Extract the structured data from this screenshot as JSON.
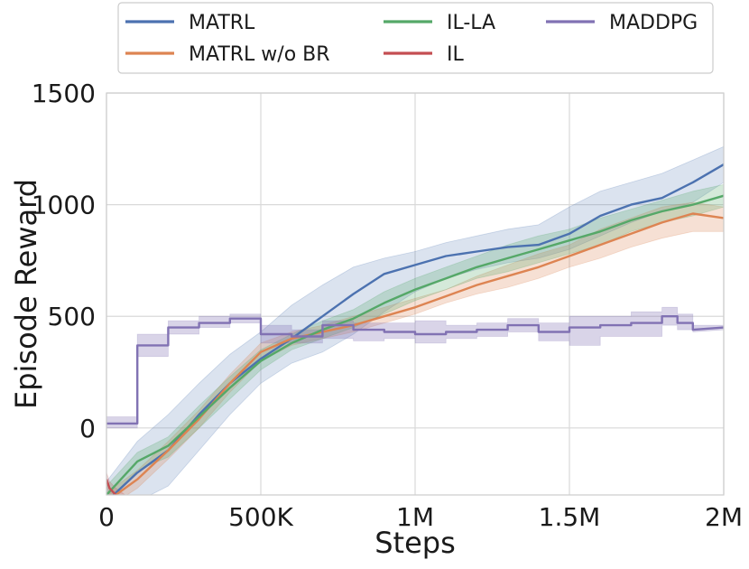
{
  "chart_data": {
    "type": "line",
    "title": "",
    "xlabel": "Steps",
    "ylabel": "Episode Reward",
    "xlim": [
      0,
      2000000
    ],
    "ylim": [
      -300,
      1500
    ],
    "x_ticks": [
      {
        "value": 0,
        "label": "0"
      },
      {
        "value": 500000,
        "label": "500K"
      },
      {
        "value": 1000000,
        "label": "1M"
      },
      {
        "value": 1500000,
        "label": "1.5M"
      },
      {
        "value": 2000000,
        "label": "2M"
      }
    ],
    "y_ticks": [
      {
        "value": 0,
        "label": "0"
      },
      {
        "value": 500,
        "label": "500"
      },
      {
        "value": 1000,
        "label": "1000"
      },
      {
        "value": 1500,
        "label": "1500"
      }
    ],
    "grid": true,
    "legend_position": "top",
    "series": [
      {
        "name": "MATRL",
        "color": "#4c72b0",
        "band_opacity": 0.2,
        "x": [
          0,
          100000,
          200000,
          300000,
          400000,
          500000,
          600000,
          700000,
          800000,
          900000,
          1000000,
          1100000,
          1200000,
          1300000,
          1400000,
          1500000,
          1600000,
          1700000,
          1800000,
          1900000,
          2000000
        ],
        "y": [
          -330,
          -200,
          -100,
          60,
          200,
          310,
          400,
          500,
          600,
          690,
          730,
          770,
          790,
          810,
          820,
          870,
          950,
          1000,
          1030,
          1100,
          1180
        ],
        "lower": [
          -420,
          -330,
          -260,
          -100,
          60,
          200,
          290,
          340,
          420,
          520,
          610,
          670,
          710,
          740,
          760,
          800,
          860,
          920,
          970,
          1010,
          1100
        ],
        "upper": [
          -240,
          -60,
          60,
          200,
          330,
          430,
          550,
          640,
          720,
          760,
          790,
          830,
          860,
          890,
          910,
          990,
          1060,
          1100,
          1140,
          1200,
          1260
        ]
      },
      {
        "name": "MATRL w/o BR",
        "color": "#dd8452",
        "band_opacity": 0.25,
        "x": [
          0,
          100000,
          200000,
          300000,
          400000,
          500000,
          600000,
          700000,
          800000,
          900000,
          1000000,
          1100000,
          1200000,
          1300000,
          1400000,
          1500000,
          1600000,
          1700000,
          1800000,
          1900000,
          2000000
        ],
        "y": [
          -330,
          -230,
          -100,
          40,
          200,
          340,
          400,
          430,
          460,
          500,
          540,
          590,
          640,
          680,
          720,
          770,
          820,
          870,
          920,
          960,
          940
        ],
        "lower": [
          -360,
          -270,
          -140,
          0,
          160,
          300,
          370,
          400,
          430,
          470,
          510,
          560,
          600,
          630,
          670,
          720,
          760,
          810,
          850,
          880,
          880
        ],
        "upper": [
          -290,
          -190,
          -60,
          80,
          240,
          380,
          430,
          460,
          500,
          540,
          580,
          620,
          680,
          730,
          780,
          820,
          890,
          940,
          990,
          1010,
          990
        ]
      },
      {
        "name": "IL-LA",
        "color": "#55a868",
        "band_opacity": 0.25,
        "x": [
          0,
          100000,
          200000,
          300000,
          400000,
          500000,
          600000,
          700000,
          800000,
          900000,
          1000000,
          1100000,
          1200000,
          1300000,
          1400000,
          1500000,
          1600000,
          1700000,
          1800000,
          1900000,
          2000000
        ],
        "y": [
          -300,
          -150,
          -80,
          50,
          180,
          300,
          380,
          440,
          490,
          560,
          620,
          670,
          720,
          760,
          800,
          840,
          880,
          930,
          970,
          1000,
          1040
        ],
        "lower": [
          -340,
          -190,
          -130,
          0,
          130,
          260,
          350,
          400,
          450,
          510,
          570,
          620,
          670,
          700,
          740,
          780,
          820,
          880,
          920,
          950,
          990
        ],
        "upper": [
          -260,
          -110,
          -40,
          100,
          230,
          350,
          420,
          480,
          530,
          610,
          670,
          720,
          770,
          820,
          860,
          890,
          940,
          980,
          1020,
          1060,
          1090
        ]
      },
      {
        "name": "IL",
        "color": "#c44e52",
        "band_opacity": 0.2,
        "x": [
          0,
          10000,
          30000,
          60000
        ],
        "y": [
          -230,
          -270,
          -300,
          -330
        ],
        "lower": [
          -260,
          -300,
          -330,
          -360
        ],
        "upper": [
          -200,
          -240,
          -270,
          -300
        ]
      },
      {
        "name": "MADDPG",
        "color": "#8172b3",
        "band_opacity": 0.3,
        "x": [
          0,
          100000,
          100000,
          200000,
          200000,
          300000,
          300000,
          400000,
          400000,
          500000,
          500000,
          600000,
          600000,
          700000,
          700000,
          800000,
          800000,
          900000,
          900000,
          1000000,
          1000000,
          1100000,
          1100000,
          1200000,
          1200000,
          1300000,
          1300000,
          1400000,
          1400000,
          1500000,
          1500000,
          1600000,
          1600000,
          1700000,
          1700000,
          1800000,
          1800000,
          1850000,
          1850000,
          1900000,
          1900000,
          2000000
        ],
        "y": [
          20,
          20,
          370,
          370,
          450,
          450,
          470,
          470,
          490,
          490,
          420,
          420,
          410,
          410,
          460,
          460,
          440,
          440,
          430,
          430,
          420,
          420,
          430,
          430,
          440,
          440,
          460,
          460,
          430,
          430,
          450,
          450,
          460,
          460,
          470,
          470,
          500,
          500,
          470,
          470,
          440,
          450
        ],
        "lower": [
          0,
          0,
          320,
          320,
          420,
          420,
          450,
          450,
          470,
          470,
          380,
          380,
          380,
          380,
          400,
          400,
          390,
          390,
          400,
          400,
          380,
          380,
          400,
          400,
          410,
          410,
          430,
          430,
          390,
          390,
          370,
          370,
          410,
          410,
          410,
          410,
          460,
          460,
          440,
          440,
          430,
          440
        ],
        "upper": [
          50,
          50,
          420,
          420,
          480,
          480,
          500,
          500,
          510,
          510,
          460,
          460,
          440,
          440,
          480,
          480,
          470,
          470,
          470,
          470,
          480,
          480,
          460,
          460,
          470,
          470,
          490,
          490,
          470,
          470,
          500,
          500,
          500,
          500,
          520,
          520,
          540,
          540,
          510,
          510,
          460,
          460
        ]
      }
    ]
  }
}
